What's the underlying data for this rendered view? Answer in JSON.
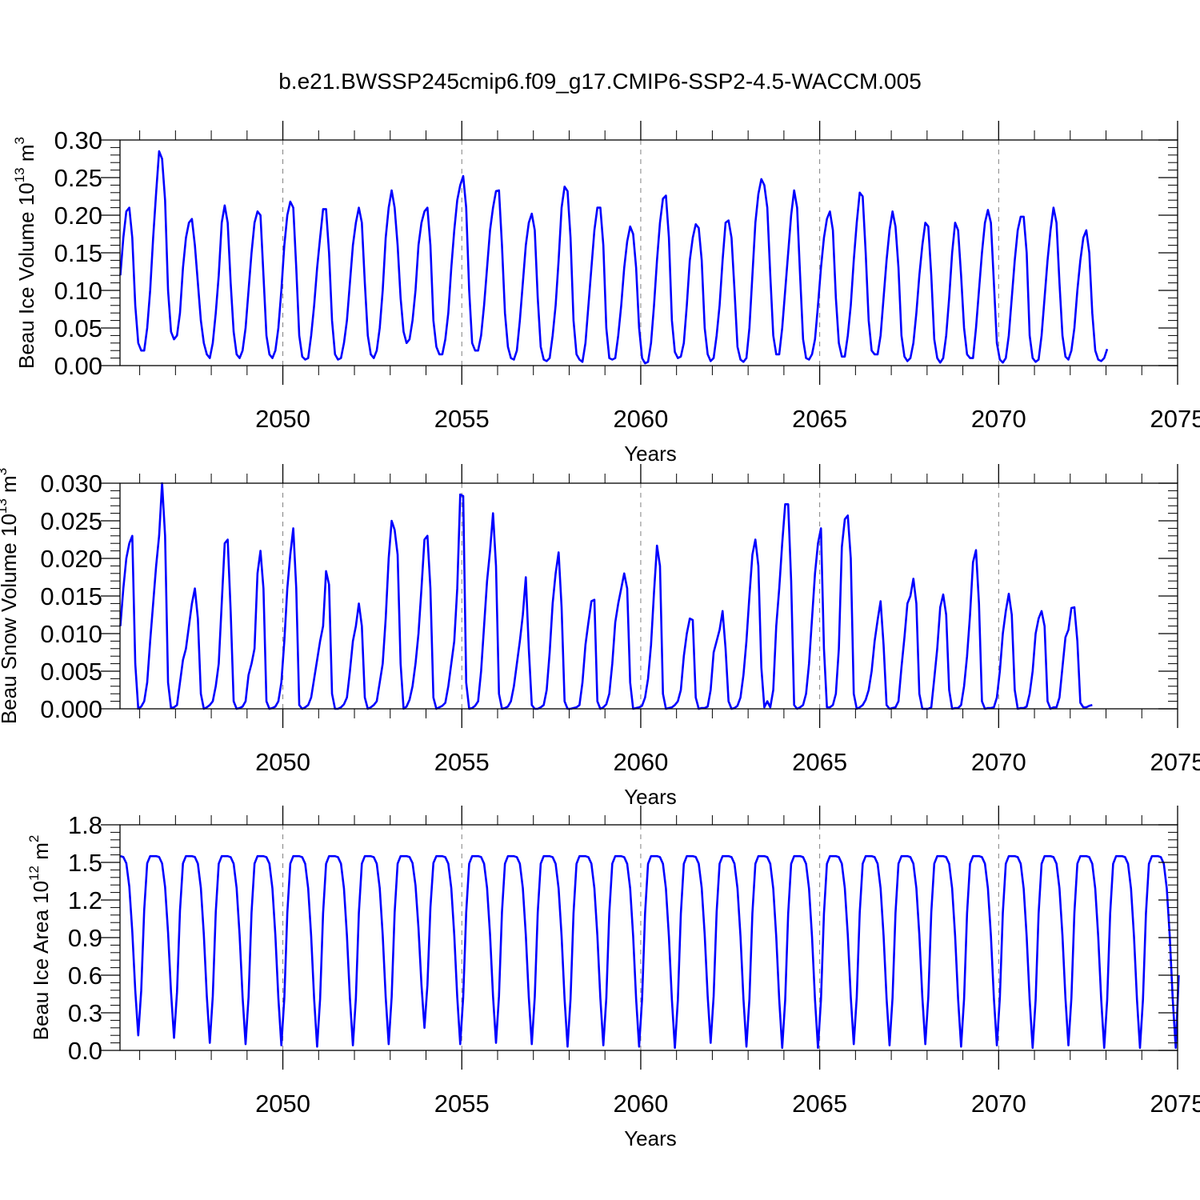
{
  "title": "b.e21.BWSSP245cmip6.f09_g17.CMIP6-SSP2-4.5-WACCM.005",
  "colors": {
    "line": "#0000ff",
    "axis": "#000000",
    "grid": "#808080",
    "background": "#ffffff"
  },
  "chart_data": [
    {
      "type": "line",
      "ylabel": {
        "main": "Beau Ice Volume 10",
        "exp": "13",
        "unit": " m",
        "unit_exp": "3"
      },
      "xlabel": "Years",
      "xlim": [
        2045.45,
        2075.0
      ],
      "ylim": [
        0.0,
        0.3
      ],
      "xticks": [
        2050,
        2055,
        2060,
        2065,
        2070,
        2075
      ],
      "xtick_labels": [
        "2050",
        "2055",
        "2060",
        "2065",
        "2070",
        "2075"
      ],
      "yticks": [
        0.0,
        0.05,
        0.1,
        0.15,
        0.2,
        0.25,
        0.3
      ],
      "ytick_labels": [
        "0.00",
        "0.05",
        "0.10",
        "0.15",
        "0.20",
        "0.25",
        "0.30"
      ],
      "gridlines_x": [
        2050,
        2055,
        2060,
        2065,
        2070
      ],
      "x_start": 2045.46,
      "x_step": 0.0833,
      "series": [
        {
          "name": "Beau Ice Volume",
          "values": [
            0.12,
            0.17,
            0.205,
            0.21,
            0.17,
            0.08,
            0.03,
            0.02,
            0.02,
            0.05,
            0.1,
            0.17,
            0.23,
            0.285,
            0.275,
            0.22,
            0.1,
            0.045,
            0.035,
            0.04,
            0.07,
            0.13,
            0.17,
            0.19,
            0.195,
            0.16,
            0.11,
            0.06,
            0.03,
            0.015,
            0.01,
            0.03,
            0.07,
            0.12,
            0.19,
            0.213,
            0.19,
            0.11,
            0.045,
            0.015,
            0.01,
            0.02,
            0.05,
            0.1,
            0.15,
            0.19,
            0.205,
            0.2,
            0.12,
            0.04,
            0.015,
            0.01,
            0.02,
            0.05,
            0.1,
            0.16,
            0.2,
            0.218,
            0.21,
            0.13,
            0.04,
            0.012,
            0.008,
            0.01,
            0.04,
            0.08,
            0.13,
            0.17,
            0.208,
            0.208,
            0.15,
            0.06,
            0.015,
            0.008,
            0.01,
            0.03,
            0.06,
            0.11,
            0.16,
            0.19,
            0.21,
            0.19,
            0.11,
            0.04,
            0.015,
            0.01,
            0.02,
            0.05,
            0.1,
            0.17,
            0.21,
            0.233,
            0.21,
            0.16,
            0.09,
            0.045,
            0.03,
            0.035,
            0.06,
            0.1,
            0.16,
            0.19,
            0.205,
            0.21,
            0.16,
            0.06,
            0.025,
            0.015,
            0.015,
            0.035,
            0.07,
            0.13,
            0.18,
            0.22,
            0.24,
            0.252,
            0.21,
            0.1,
            0.03,
            0.02,
            0.02,
            0.04,
            0.08,
            0.13,
            0.18,
            0.21,
            0.232,
            0.233,
            0.16,
            0.07,
            0.025,
            0.01,
            0.008,
            0.02,
            0.06,
            0.11,
            0.16,
            0.19,
            0.202,
            0.18,
            0.09,
            0.025,
            0.008,
            0.006,
            0.01,
            0.04,
            0.08,
            0.14,
            0.21,
            0.238,
            0.232,
            0.17,
            0.06,
            0.015,
            0.008,
            0.005,
            0.03,
            0.08,
            0.13,
            0.18,
            0.21,
            0.21,
            0.16,
            0.05,
            0.01,
            0.008,
            0.01,
            0.04,
            0.08,
            0.13,
            0.165,
            0.185,
            0.175,
            0.13,
            0.05,
            0.01,
            0.003,
            0.005,
            0.03,
            0.08,
            0.14,
            0.19,
            0.222,
            0.226,
            0.17,
            0.06,
            0.018,
            0.01,
            0.012,
            0.03,
            0.08,
            0.14,
            0.17,
            0.188,
            0.183,
            0.14,
            0.05,
            0.015,
            0.006,
            0.01,
            0.04,
            0.08,
            0.14,
            0.19,
            0.193,
            0.17,
            0.1,
            0.025,
            0.008,
            0.005,
            0.01,
            0.05,
            0.12,
            0.19,
            0.228,
            0.248,
            0.24,
            0.21,
            0.12,
            0.04,
            0.015,
            0.015,
            0.05,
            0.1,
            0.15,
            0.2,
            0.233,
            0.21,
            0.12,
            0.035,
            0.01,
            0.008,
            0.015,
            0.035,
            0.08,
            0.13,
            0.17,
            0.195,
            0.205,
            0.18,
            0.09,
            0.03,
            0.012,
            0.012,
            0.04,
            0.08,
            0.14,
            0.19,
            0.23,
            0.225,
            0.15,
            0.06,
            0.02,
            0.015,
            0.015,
            0.04,
            0.09,
            0.14,
            0.18,
            0.205,
            0.185,
            0.13,
            0.04,
            0.012,
            0.006,
            0.01,
            0.03,
            0.07,
            0.12,
            0.16,
            0.19,
            0.185,
            0.12,
            0.035,
            0.01,
            0.004,
            0.01,
            0.04,
            0.09,
            0.15,
            0.19,
            0.18,
            0.12,
            0.05,
            0.015,
            0.01,
            0.01,
            0.05,
            0.1,
            0.15,
            0.19,
            0.207,
            0.19,
            0.11,
            0.03,
            0.008,
            0.004,
            0.01,
            0.04,
            0.09,
            0.14,
            0.18,
            0.198,
            0.198,
            0.15,
            0.04,
            0.01,
            0.005,
            0.008,
            0.04,
            0.09,
            0.14,
            0.18,
            0.21,
            0.19,
            0.11,
            0.04,
            0.012,
            0.008,
            0.02,
            0.05,
            0.1,
            0.14,
            0.17,
            0.18,
            0.15,
            0.07,
            0.02,
            0.008,
            0.006,
            0.01,
            0.022
          ]
        }
      ]
    },
    {
      "type": "line",
      "ylabel": {
        "main": "Beau Snow Volume 10",
        "exp": "13",
        "unit": " m",
        "unit_exp": "3"
      },
      "xlabel": "Years",
      "xlim": [
        2045.45,
        2075.0
      ],
      "ylim": [
        0.0,
        0.03
      ],
      "xticks": [
        2050,
        2055,
        2060,
        2065,
        2070,
        2075
      ],
      "xtick_labels": [
        "2050",
        "2055",
        "2060",
        "2065",
        "2070",
        "2075"
      ],
      "yticks": [
        0.0,
        0.005,
        0.01,
        0.015,
        0.02,
        0.025,
        0.03
      ],
      "ytick_labels": [
        "0.000",
        "0.005",
        "0.010",
        "0.015",
        "0.020",
        "0.025",
        "0.030"
      ],
      "gridlines_x": [
        2050,
        2055,
        2060,
        2065,
        2070
      ],
      "x_start": 2045.46,
      "x_step": 0.0833,
      "series": [
        {
          "name": "Beau Snow Volume",
          "values": [
            0.011,
            0.016,
            0.02,
            0.022,
            0.023,
            0.006,
            0.0,
            0.0003,
            0.001,
            0.0035,
            0.009,
            0.014,
            0.019,
            0.023,
            0.03,
            0.023,
            0.0035,
            0.0001,
            0.0002,
            0.0005,
            0.0035,
            0.0065,
            0.008,
            0.011,
            0.014,
            0.016,
            0.012,
            0.002,
            0.0,
            0.0002,
            0.0005,
            0.001,
            0.003,
            0.006,
            0.014,
            0.022,
            0.0225,
            0.013,
            0.001,
            0.0,
            0.0001,
            0.0003,
            0.001,
            0.0045,
            0.006,
            0.008,
            0.018,
            0.021,
            0.016,
            0.001,
            0.0,
            0.0001,
            0.0003,
            0.001,
            0.0035,
            0.009,
            0.016,
            0.0205,
            0.024,
            0.016,
            0.0005,
            0.0,
            0.0002,
            0.0005,
            0.0015,
            0.004,
            0.0065,
            0.009,
            0.011,
            0.0183,
            0.0165,
            0.002,
            0.0,
            0.0,
            0.0002,
            0.0006,
            0.0015,
            0.005,
            0.009,
            0.011,
            0.014,
            0.011,
            0.0015,
            0.0,
            0.0002,
            0.0005,
            0.001,
            0.0035,
            0.006,
            0.012,
            0.02,
            0.025,
            0.0238,
            0.0205,
            0.006,
            0.0,
            0.0003,
            0.0012,
            0.003,
            0.006,
            0.01,
            0.016,
            0.0225,
            0.023,
            0.016,
            0.0015,
            0.0,
            0.0002,
            0.0004,
            0.0008,
            0.003,
            0.006,
            0.009,
            0.016,
            0.0285,
            0.0283,
            0.0035,
            0.0,
            0.0001,
            0.0004,
            0.001,
            0.005,
            0.011,
            0.017,
            0.021,
            0.026,
            0.019,
            0.002,
            0.0,
            0.0001,
            0.0003,
            0.001,
            0.003,
            0.006,
            0.009,
            0.0125,
            0.0175,
            0.008,
            0.0005,
            0.0,
            0.0,
            0.0002,
            0.0005,
            0.0025,
            0.0075,
            0.014,
            0.018,
            0.0208,
            0.0135,
            0.001,
            0.0,
            0.0,
            0.0001,
            0.0002,
            0.0005,
            0.0035,
            0.0085,
            0.0115,
            0.0143,
            0.0145,
            0.001,
            0.0,
            0.0002,
            0.0006,
            0.002,
            0.006,
            0.0115,
            0.014,
            0.016,
            0.018,
            0.016,
            0.0035,
            0.0,
            0.0001,
            0.0002,
            0.0004,
            0.0015,
            0.004,
            0.0085,
            0.0155,
            0.0217,
            0.019,
            0.002,
            0.0,
            0.0001,
            0.0002,
            0.0005,
            0.001,
            0.0025,
            0.007,
            0.01,
            0.012,
            0.0118,
            0.0015,
            0.0,
            0.0001,
            0.0001,
            0.0003,
            0.0025,
            0.0075,
            0.009,
            0.0105,
            0.013,
            0.008,
            0.001,
            0.0,
            0.0001,
            0.0004,
            0.0015,
            0.0045,
            0.009,
            0.015,
            0.0205,
            0.0225,
            0.019,
            0.0055,
            0.0002,
            0.001,
            0.0002,
            0.0025,
            0.011,
            0.016,
            0.022,
            0.0272,
            0.0272,
            0.017,
            0.0005,
            0.0,
            0.0002,
            0.0005,
            0.002,
            0.006,
            0.012,
            0.018,
            0.022,
            0.024,
            0.008,
            0.0002,
            0.0002,
            0.0005,
            0.002,
            0.008,
            0.0215,
            0.0252,
            0.0257,
            0.02,
            0.002,
            0.0,
            0.0002,
            0.0005,
            0.0012,
            0.0025,
            0.005,
            0.009,
            0.0118,
            0.0143,
            0.0085,
            0.0005,
            0.0,
            0.0001,
            0.0002,
            0.001,
            0.0055,
            0.0095,
            0.014,
            0.015,
            0.0173,
            0.014,
            0.002,
            0.0,
            0.0,
            0.0,
            0.0002,
            0.004,
            0.008,
            0.0135,
            0.0152,
            0.0125,
            0.0025,
            0.0,
            0.0001,
            0.0001,
            0.0005,
            0.003,
            0.007,
            0.0125,
            0.0195,
            0.0211,
            0.014,
            0.001,
            0.0,
            0.0001,
            0.0001,
            0.0002,
            0.0015,
            0.005,
            0.01,
            0.013,
            0.0153,
            0.0125,
            0.0025,
            0.0,
            0.0001,
            0.0001,
            0.0003,
            0.002,
            0.005,
            0.01,
            0.012,
            0.013,
            0.011,
            0.001,
            0.0,
            0.0002,
            0.0002,
            0.0015,
            0.0055,
            0.0095,
            0.0105,
            0.0134,
            0.0135,
            0.009,
            0.0008,
            0.0002,
            0.0002,
            0.0004,
            0.0005
          ]
        }
      ]
    },
    {
      "type": "line",
      "ylabel": {
        "main": "Beau Ice Area 10",
        "exp": "12",
        "unit": " m",
        "unit_exp": "2"
      },
      "xlabel": "Years",
      "xlim": [
        2045.45,
        2075.0
      ],
      "ylim": [
        0.0,
        1.8
      ],
      "xticks": [
        2050,
        2055,
        2060,
        2065,
        2070,
        2075
      ],
      "xtick_labels": [
        "2050",
        "2055",
        "2060",
        "2065",
        "2070",
        "2075"
      ],
      "yticks": [
        0.0,
        0.3,
        0.6,
        0.9,
        1.2,
        1.5,
        1.8
      ],
      "ytick_labels": [
        "0.0",
        "0.3",
        "0.6",
        "0.9",
        "1.2",
        "1.5",
        "1.8"
      ],
      "gridlines_x": [
        2050,
        2055,
        2060,
        2065,
        2070
      ],
      "x_start": 2045.46,
      "x_step": 0.0833,
      "cycle_model": {
        "description": "monthly annual cycle",
        "winter_max": 1.55,
        "summer_min_by_year": [
          0.12,
          0.1,
          0.06,
          0.05,
          0.04,
          0.03,
          0.04,
          0.05,
          0.18,
          0.05,
          0.06,
          0.05,
          0.03,
          0.04,
          0.03,
          0.02,
          0.06,
          0.03,
          0.02,
          0.02,
          0.05,
          0.04,
          0.05,
          0.03,
          0.04,
          0.02,
          0.04,
          0.02,
          0.02,
          0.02,
          0.6
        ]
      }
    }
  ]
}
